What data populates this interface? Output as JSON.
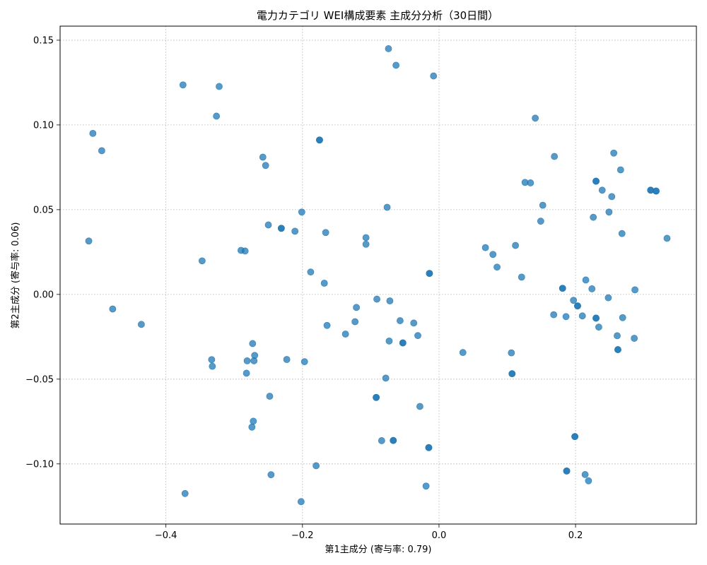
{
  "chart_data": {
    "type": "scatter",
    "title": "電力カテゴリ WEI構成要素 主成分分析（30日間）",
    "xlabel": "第1主成分 (寄与率: 0.79)",
    "ylabel": "第2主成分 (寄与率: 0.06)",
    "xlim": [
      -0.555,
      0.377
    ],
    "ylim": [
      -0.1355,
      0.1583
    ],
    "x_ticks": [
      -0.4,
      -0.2,
      0.0,
      0.2
    ],
    "x_tick_labels": [
      "−0.4",
      "−0.2",
      "0.0",
      "0.2"
    ],
    "y_ticks": [
      -0.1,
      -0.05,
      0.0,
      0.05,
      0.1,
      0.15
    ],
    "y_tick_labels": [
      "−0.10",
      "−0.05",
      "0.00",
      "0.05",
      "0.10",
      "0.15"
    ],
    "grid": true,
    "marker_color": "#1f77b4",
    "marker_alpha": 0.75,
    "points": [
      {
        "x": -0.513,
        "y": 0.0315
      },
      {
        "x": -0.507,
        "y": 0.095
      },
      {
        "x": -0.494,
        "y": 0.0848
      },
      {
        "x": -0.478,
        "y": -0.0086
      },
      {
        "x": -0.436,
        "y": -0.0177
      },
      {
        "x": -0.375,
        "y": 0.1236
      },
      {
        "x": -0.372,
        "y": -0.1175
      },
      {
        "x": -0.347,
        "y": 0.0198
      },
      {
        "x": -0.333,
        "y": -0.0385
      },
      {
        "x": -0.332,
        "y": -0.0424
      },
      {
        "x": -0.326,
        "y": 0.1052
      },
      {
        "x": -0.322,
        "y": 0.1227
      },
      {
        "x": -0.29,
        "y": 0.026
      },
      {
        "x": -0.284,
        "y": 0.0256
      },
      {
        "x": -0.282,
        "y": -0.0465
      },
      {
        "x": -0.281,
        "y": -0.0392
      },
      {
        "x": -0.274,
        "y": -0.0783
      },
      {
        "x": -0.273,
        "y": -0.029
      },
      {
        "x": -0.272,
        "y": -0.0748
      },
      {
        "x": -0.271,
        "y": -0.0392
      },
      {
        "x": -0.27,
        "y": -0.036
      },
      {
        "x": -0.258,
        "y": 0.081
      },
      {
        "x": -0.254,
        "y": 0.0761
      },
      {
        "x": -0.25,
        "y": 0.041
      },
      {
        "x": -0.248,
        "y": -0.0601
      },
      {
        "x": -0.246,
        "y": -0.1064
      },
      {
        "x": -0.231,
        "y": 0.039
      },
      {
        "x": -0.231,
        "y": 0.039
      },
      {
        "x": -0.223,
        "y": -0.0384
      },
      {
        "x": -0.211,
        "y": 0.0373
      },
      {
        "x": -0.202,
        "y": -0.1223
      },
      {
        "x": -0.201,
        "y": 0.0486
      },
      {
        "x": -0.197,
        "y": -0.0397
      },
      {
        "x": -0.188,
        "y": 0.0132
      },
      {
        "x": -0.18,
        "y": -0.1011
      },
      {
        "x": -0.175,
        "y": 0.0911
      },
      {
        "x": -0.175,
        "y": 0.0911
      },
      {
        "x": -0.168,
        "y": 0.0066
      },
      {
        "x": -0.166,
        "y": 0.0365
      },
      {
        "x": -0.164,
        "y": -0.0183
      },
      {
        "x": -0.137,
        "y": -0.0234
      },
      {
        "x": -0.123,
        "y": -0.0161
      },
      {
        "x": -0.121,
        "y": -0.0077
      },
      {
        "x": -0.107,
        "y": 0.0335
      },
      {
        "x": -0.107,
        "y": 0.0296
      },
      {
        "x": -0.092,
        "y": -0.0608
      },
      {
        "x": -0.092,
        "y": -0.0608
      },
      {
        "x": -0.091,
        "y": -0.0028
      },
      {
        "x": -0.084,
        "y": -0.0863
      },
      {
        "x": -0.078,
        "y": -0.0494
      },
      {
        "x": -0.076,
        "y": 0.0514
      },
      {
        "x": -0.074,
        "y": 0.145
      },
      {
        "x": -0.073,
        "y": -0.0275
      },
      {
        "x": -0.072,
        "y": -0.0038
      },
      {
        "x": -0.067,
        "y": -0.0862
      },
      {
        "x": -0.067,
        "y": -0.0862
      },
      {
        "x": -0.063,
        "y": 0.1352
      },
      {
        "x": -0.057,
        "y": -0.0155
      },
      {
        "x": -0.053,
        "y": -0.0286
      },
      {
        "x": -0.053,
        "y": -0.0286
      },
      {
        "x": -0.037,
        "y": -0.0169
      },
      {
        "x": -0.031,
        "y": -0.0243
      },
      {
        "x": -0.028,
        "y": -0.0661
      },
      {
        "x": -0.019,
        "y": -0.1131
      },
      {
        "x": -0.015,
        "y": -0.0904
      },
      {
        "x": -0.015,
        "y": -0.0904
      },
      {
        "x": -0.014,
        "y": 0.0124
      },
      {
        "x": -0.014,
        "y": 0.0124
      },
      {
        "x": -0.008,
        "y": 0.1289
      },
      {
        "x": 0.035,
        "y": -0.0343
      },
      {
        "x": 0.068,
        "y": 0.0276
      },
      {
        "x": 0.079,
        "y": 0.0236
      },
      {
        "x": 0.085,
        "y": 0.0161
      },
      {
        "x": 0.106,
        "y": -0.0345
      },
      {
        "x": 0.107,
        "y": -0.0468
      },
      {
        "x": 0.107,
        "y": -0.0468
      },
      {
        "x": 0.112,
        "y": 0.0289
      },
      {
        "x": 0.121,
        "y": 0.0102
      },
      {
        "x": 0.126,
        "y": 0.0661
      },
      {
        "x": 0.134,
        "y": 0.0658
      },
      {
        "x": 0.141,
        "y": 0.104
      },
      {
        "x": 0.149,
        "y": 0.0432
      },
      {
        "x": 0.152,
        "y": 0.0526
      },
      {
        "x": 0.168,
        "y": -0.012
      },
      {
        "x": 0.169,
        "y": 0.0814
      },
      {
        "x": 0.181,
        "y": 0.0036
      },
      {
        "x": 0.181,
        "y": 0.0036
      },
      {
        "x": 0.186,
        "y": -0.0131
      },
      {
        "x": 0.187,
        "y": -0.1042
      },
      {
        "x": 0.187,
        "y": -0.1042
      },
      {
        "x": 0.197,
        "y": -0.0035
      },
      {
        "x": 0.199,
        "y": -0.0839
      },
      {
        "x": 0.199,
        "y": -0.0839
      },
      {
        "x": 0.203,
        "y": -0.0068
      },
      {
        "x": 0.203,
        "y": -0.0068
      },
      {
        "x": 0.21,
        "y": -0.0127
      },
      {
        "x": 0.214,
        "y": -0.1063
      },
      {
        "x": 0.215,
        "y": 0.0085
      },
      {
        "x": 0.219,
        "y": -0.11
      },
      {
        "x": 0.224,
        "y": 0.0033
      },
      {
        "x": 0.226,
        "y": 0.0455
      },
      {
        "x": 0.23,
        "y": 0.0668
      },
      {
        "x": 0.23,
        "y": 0.0668
      },
      {
        "x": 0.23,
        "y": -0.014
      },
      {
        "x": 0.23,
        "y": -0.014
      },
      {
        "x": 0.234,
        "y": -0.0193
      },
      {
        "x": 0.239,
        "y": 0.0615
      },
      {
        "x": 0.248,
        "y": -0.002
      },
      {
        "x": 0.249,
        "y": 0.0486
      },
      {
        "x": 0.253,
        "y": 0.0577
      },
      {
        "x": 0.256,
        "y": 0.0834
      },
      {
        "x": 0.261,
        "y": -0.0244
      },
      {
        "x": 0.262,
        "y": -0.0326
      },
      {
        "x": 0.262,
        "y": -0.0326
      },
      {
        "x": 0.266,
        "y": 0.0735
      },
      {
        "x": 0.268,
        "y": 0.0359
      },
      {
        "x": 0.269,
        "y": -0.0137
      },
      {
        "x": 0.287,
        "y": 0.0027
      },
      {
        "x": 0.286,
        "y": -0.0259
      },
      {
        "x": 0.31,
        "y": 0.0615
      },
      {
        "x": 0.31,
        "y": 0.0615
      },
      {
        "x": 0.318,
        "y": 0.061
      },
      {
        "x": 0.318,
        "y": 0.061
      },
      {
        "x": 0.334,
        "y": 0.0331
      }
    ]
  }
}
